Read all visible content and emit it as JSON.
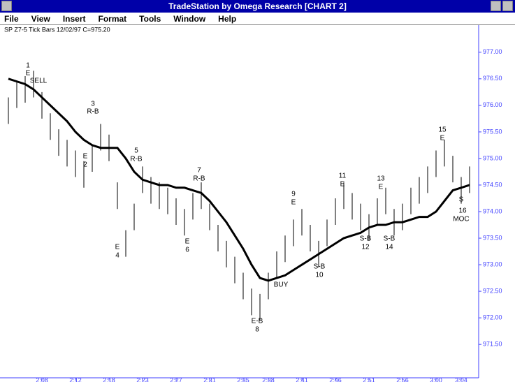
{
  "window": {
    "title": "TradeStation by Omega Research  [CHART 2]",
    "menu": [
      "File",
      "View",
      "Insert",
      "Format",
      "Tools",
      "Window",
      "Help"
    ]
  },
  "chart_data": {
    "type": "tickbar",
    "title": "SP Z7-5 Tick Bars 12/02/97 C=975.20",
    "categories": [
      null,
      null,
      null,
      null,
      "2:08",
      null,
      null,
      null,
      "2:12",
      null,
      null,
      null,
      "2:18",
      null,
      null,
      null,
      "2:23",
      null,
      null,
      null,
      "2:27",
      null,
      null,
      null,
      "2:31",
      null,
      null,
      null,
      "2:35",
      null,
      null,
      "2:38",
      null,
      null,
      null,
      "2:41",
      null,
      null,
      null,
      "2:46",
      null,
      null,
      null,
      "2:51",
      null,
      null,
      null,
      "2:56",
      null,
      null,
      null,
      "3:00",
      null,
      null,
      "3:04",
      null
    ],
    "series": [
      {
        "name": "High",
        "color": "#000000",
        "values": [
          976.15,
          976.45,
          976.55,
          976.65,
          976.25,
          975.85,
          975.55,
          975.35,
          975.15,
          974.95,
          975.25,
          975.65,
          975.45,
          974.55,
          973.65,
          974.15,
          974.85,
          974.65,
          974.55,
          974.45,
          974.25,
          974.05,
          974.35,
          974.55,
          974.15,
          973.75,
          973.45,
          973.15,
          972.85,
          972.55,
          972.45,
          972.85,
          973.25,
          973.55,
          973.85,
          974.05,
          973.75,
          973.45,
          973.85,
          974.25,
          974.55,
          974.35,
          974.15,
          973.95,
          974.25,
          974.45,
          974.05,
          974.15,
          974.45,
          974.65,
          974.85,
          975.15,
          975.35,
          975.05,
          974.65,
          974.85
        ]
      },
      {
        "name": "Low",
        "color": "#000000",
        "values": [
          975.65,
          975.95,
          976.05,
          976.15,
          975.75,
          975.35,
          975.05,
          974.85,
          974.65,
          974.45,
          974.75,
          975.15,
          974.95,
          974.05,
          973.15,
          973.65,
          974.35,
          974.15,
          974.05,
          973.95,
          973.75,
          973.55,
          973.85,
          974.05,
          973.65,
          973.25,
          972.95,
          972.65,
          972.35,
          972.05,
          971.95,
          972.35,
          972.75,
          973.05,
          973.35,
          973.55,
          973.25,
          972.95,
          973.35,
          973.75,
          974.05,
          973.85,
          973.65,
          973.45,
          973.75,
          973.95,
          973.55,
          973.65,
          973.95,
          974.15,
          974.35,
          974.65,
          974.85,
          974.55,
          974.15,
          974.35
        ]
      },
      {
        "name": "Average",
        "color": "#000000",
        "values": [
          976.5,
          976.45,
          976.4,
          976.3,
          976.15,
          976.0,
          975.85,
          975.7,
          975.5,
          975.35,
          975.25,
          975.2,
          975.2,
          975.2,
          975.0,
          974.75,
          974.6,
          974.55,
          974.5,
          974.5,
          974.45,
          974.45,
          974.4,
          974.35,
          974.2,
          974.0,
          973.8,
          973.55,
          973.3,
          973.0,
          972.75,
          972.7,
          972.75,
          972.8,
          972.9,
          973.0,
          973.1,
          973.2,
          973.3,
          973.4,
          973.5,
          973.55,
          973.6,
          973.7,
          973.75,
          973.75,
          973.8,
          973.8,
          973.85,
          973.9,
          973.9,
          974.0,
          974.2,
          974.4,
          974.45,
          974.5
        ]
      }
    ],
    "ylim": [
      970.95,
      977.51
    ],
    "yticks": [
      {
        "value": 977,
        "label": "977.00"
      },
      {
        "value": 976.5,
        "label": "976.50"
      },
      {
        "value": 976,
        "label": "976.00"
      },
      {
        "value": 975.5,
        "label": "975.50"
      },
      {
        "value": 975,
        "label": "975.00"
      },
      {
        "value": 974.5,
        "label": "974.50"
      },
      {
        "value": 974,
        "label": "974.00"
      },
      {
        "value": 973.5,
        "label": "973.50"
      },
      {
        "value": 973,
        "label": "973.00"
      },
      {
        "value": 972.5,
        "label": "972.50"
      },
      {
        "value": 972,
        "label": "972.00"
      },
      {
        "value": 971.5,
        "label": "971.50"
      }
    ],
    "axis_color": "#4040ff",
    "annotations": [
      "1",
      "E",
      "SELL",
      "3",
      "R-B",
      "E",
      "2",
      "5",
      "R-B",
      "E",
      "4",
      "7",
      "R-B",
      "E",
      "6",
      "E-B",
      "8",
      "BUY",
      "9",
      "E",
      "S-B",
      "10",
      "11",
      "E",
      "S-B",
      "12",
      "13",
      "E",
      "S-B",
      "14",
      "15",
      "E",
      "S",
      "16",
      "MOC"
    ]
  }
}
